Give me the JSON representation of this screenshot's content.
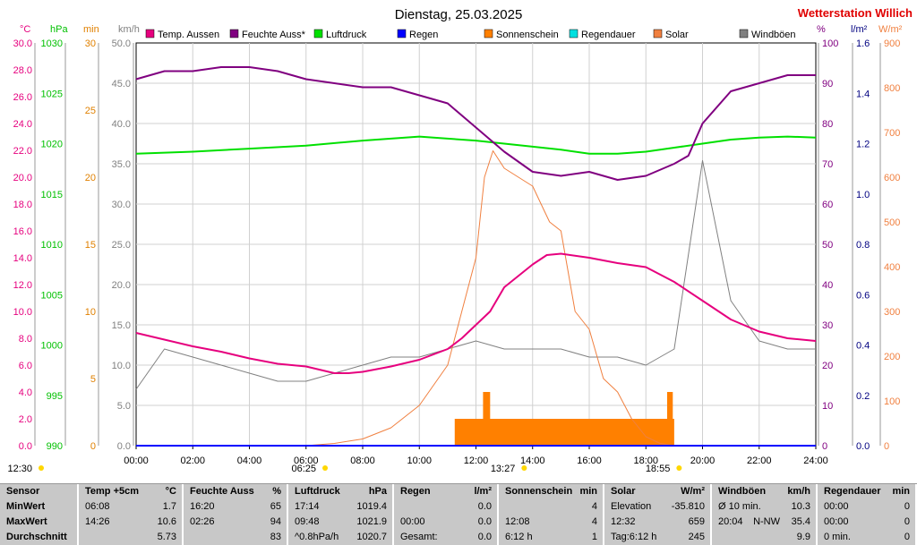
{
  "title": "Dienstag, 25.03.2025",
  "station": "Wetterstation Willich",
  "legend": [
    {
      "label": "Temp. Aussen",
      "color": "#e6007e"
    },
    {
      "label": "Feuchte Auss*",
      "color": "#800080"
    },
    {
      "label": "Luftdruck",
      "color": "#00e000"
    },
    {
      "label": "Regen",
      "color": "#0000ff"
    },
    {
      "label": "Sonnenschein",
      "color": "#ff8000"
    },
    {
      "label": "Regendauer",
      "color": "#00e0e0"
    },
    {
      "label": "Solar",
      "color": "#f08040"
    },
    {
      "label": "Windböen",
      "color": "#808080"
    }
  ],
  "axes": {
    "left": [
      {
        "unit": "°C",
        "color": "#e6007e",
        "ticks": [
          "0.0",
          "2.0",
          "4.0",
          "6.0",
          "8.0",
          "10.0",
          "12.0",
          "14.0",
          "16.0",
          "18.0",
          "20.0",
          "22.0",
          "24.0",
          "26.0",
          "28.0",
          "30.0"
        ]
      },
      {
        "unit": "hPa",
        "color": "#00c000",
        "ticks": [
          "990",
          "995",
          "1000",
          "1005",
          "1010",
          "1015",
          "1020",
          "1025",
          "1030"
        ]
      },
      {
        "unit": "min",
        "color": "#e08000",
        "ticks": [
          "0",
          "5",
          "10",
          "15",
          "20",
          "25",
          "30"
        ]
      },
      {
        "unit": "km/h",
        "color": "#808080",
        "ticks": [
          "0.0",
          "5.0",
          "10.0",
          "15.0",
          "20.0",
          "25.0",
          "30.0",
          "35.0",
          "40.0",
          "45.0",
          "50.0"
        ]
      }
    ],
    "right": [
      {
        "unit": "%",
        "color": "#800080",
        "ticks": [
          "0",
          "10",
          "20",
          "30",
          "40",
          "50",
          "60",
          "70",
          "80",
          "90",
          "100"
        ]
      },
      {
        "unit": "l/m²",
        "color": "#000080",
        "ticks": [
          "0.0",
          "0.2",
          "0.4",
          "0.6",
          "0.8",
          "1.0",
          "1.2",
          "1.4",
          "1.6"
        ]
      },
      {
        "unit": "W/m²",
        "color": "#f08040",
        "ticks": [
          "0",
          "100",
          "200",
          "300",
          "400",
          "500",
          "600",
          "700",
          "800",
          "900"
        ]
      }
    ],
    "x_ticks": [
      "00:00",
      "02:00",
      "04:00",
      "06:00",
      "08:00",
      "10:00",
      "12:00",
      "14:00",
      "16:00",
      "18:00",
      "20:00",
      "22:00",
      "24:00"
    ]
  },
  "markers": [
    {
      "label": "12:30",
      "hour": 0
    },
    {
      "label": "06:25",
      "hour": 6.42
    },
    {
      "label": "13:27",
      "hour": 13.45
    },
    {
      "label": "18:55",
      "hour": 18.92
    }
  ],
  "chart_data": {
    "type": "line",
    "title": "Dienstag, 25.03.2025",
    "x_range_hours": [
      0,
      24
    ],
    "series": [
      {
        "name": "Temp. Aussen",
        "unit": "°C",
        "axis": "°C",
        "x": [
          0,
          1,
          2,
          3,
          4,
          5,
          6,
          7,
          7.5,
          8,
          9,
          10,
          11,
          11.5,
          12,
          12.5,
          13,
          14,
          14.5,
          15,
          16,
          17,
          18,
          19,
          20,
          21,
          22,
          23,
          24
        ],
        "values": [
          8.4,
          7.9,
          7.4,
          7.0,
          6.5,
          6.1,
          5.9,
          5.4,
          5.4,
          5.5,
          5.9,
          6.4,
          7.2,
          8.0,
          9.0,
          10.0,
          11.8,
          13.5,
          14.2,
          14.3,
          14.0,
          13.6,
          13.3,
          12.2,
          10.8,
          9.4,
          8.5,
          8.0,
          7.8
        ]
      },
      {
        "name": "Feuchte Auss*",
        "unit": "%",
        "axis": "%",
        "x": [
          0,
          1,
          2,
          3,
          4,
          5,
          6,
          7,
          8,
          9,
          10,
          11,
          12,
          13,
          14,
          15,
          16,
          17,
          18,
          19,
          19.5,
          20,
          21,
          22,
          23,
          24
        ],
        "values": [
          91,
          93,
          93,
          94,
          94,
          93,
          91,
          90,
          89,
          89,
          87,
          85,
          79,
          73,
          68,
          67,
          68,
          66,
          67,
          70,
          72,
          80,
          88,
          90,
          92,
          92
        ]
      },
      {
        "name": "Luftdruck",
        "unit": "hPa",
        "axis": "hPa",
        "x": [
          0,
          2,
          4,
          6,
          8,
          10,
          11,
          12,
          13,
          14,
          15,
          16,
          17,
          18,
          19,
          20,
          21,
          22,
          23,
          24
        ],
        "values": [
          1019.0,
          1019.2,
          1019.5,
          1019.8,
          1020.3,
          1020.7,
          1020.5,
          1020.3,
          1020.0,
          1019.7,
          1019.4,
          1019.0,
          1019.0,
          1019.2,
          1019.6,
          1020.0,
          1020.4,
          1020.6,
          1020.7,
          1020.6
        ]
      },
      {
        "name": "Solar",
        "unit": "W/m²",
        "axis": "W/m²",
        "x": [
          6,
          7,
          8,
          9,
          10,
          11,
          11.5,
          12,
          12.3,
          12.6,
          13,
          13.5,
          14,
          14.3,
          14.6,
          15,
          15.5,
          16,
          16.5,
          17,
          17.5,
          18,
          18.5,
          19
        ],
        "values": [
          0,
          5,
          15,
          40,
          90,
          180,
          300,
          420,
          600,
          659,
          620,
          600,
          580,
          540,
          500,
          480,
          300,
          260,
          150,
          120,
          60,
          20,
          5,
          0
        ]
      },
      {
        "name": "Sonnenschein",
        "unit": "min",
        "axis": "min",
        "x": [
          11.25,
          12.0,
          12.25,
          12.5,
          18.5,
          18.75,
          19.0
        ],
        "values": [
          2,
          2,
          4,
          2,
          2,
          4,
          0
        ]
      },
      {
        "name": "Windböen",
        "unit": "km/h",
        "axis": "km/h",
        "x": [
          0,
          1,
          2,
          3,
          4,
          5,
          6,
          7,
          8,
          9,
          10,
          11,
          12,
          13,
          14,
          15,
          16,
          17,
          18,
          19,
          20,
          21,
          22,
          23,
          24
        ],
        "values": [
          7,
          12,
          11,
          10,
          9,
          8,
          8,
          9,
          10,
          11,
          11,
          12,
          13,
          12,
          12,
          12,
          11,
          11,
          10,
          12,
          35.4,
          18,
          13,
          12,
          12
        ]
      },
      {
        "name": "Regen",
        "unit": "l/m²",
        "axis": "l/m²",
        "x": [
          0,
          24
        ],
        "values": [
          0,
          0
        ]
      }
    ]
  },
  "stats": {
    "cols": [
      {
        "h1": "Sensor",
        "h2": "",
        "rows": [
          [
            "MinWert",
            "",
            ""
          ],
          [
            "MaxWert",
            "",
            ""
          ],
          [
            "Durchschnitt",
            "",
            ""
          ]
        ]
      },
      {
        "h1": "Temp +5cm",
        "h2": "°C",
        "rows": [
          [
            "06:08",
            "",
            "1.7"
          ],
          [
            "14:26",
            "",
            "10.6"
          ],
          [
            "",
            "",
            "5.73"
          ]
        ]
      },
      {
        "h1": "Feuchte Auss",
        "h2": "%",
        "rows": [
          [
            "16:20",
            "",
            "65"
          ],
          [
            "02:26",
            "",
            "94"
          ],
          [
            "",
            "",
            "83"
          ]
        ]
      },
      {
        "h1": "Luftdruck",
        "h2": "hPa",
        "rows": [
          [
            "17:14",
            "",
            "1019.4"
          ],
          [
            "09:48",
            "",
            "1021.9"
          ],
          [
            "^0.8hPa/h",
            "",
            "1020.7"
          ]
        ]
      },
      {
        "h1": "Regen",
        "h2": "l/m²",
        "rows": [
          [
            "",
            "",
            "0.0"
          ],
          [
            "00:00",
            "",
            "0.0"
          ],
          [
            "Gesamt:",
            "",
            "0.0"
          ]
        ]
      },
      {
        "h1": "Sonnenschein",
        "h2": "min",
        "rows": [
          [
            "",
            "",
            "4"
          ],
          [
            "12:08",
            "",
            "4"
          ],
          [
            "6:12 h",
            "",
            "1"
          ]
        ]
      },
      {
        "h1": "Solar",
        "h2": "W/m²",
        "rows": [
          [
            "Elevation",
            "",
            "-35.810"
          ],
          [
            "12:32",
            "",
            "659"
          ],
          [
            "Tag:6:12 h",
            "",
            "245"
          ]
        ]
      },
      {
        "h1": "Windböen",
        "h2": "km/h",
        "rows": [
          [
            "Ø 10 min.",
            "",
            "10.3"
          ],
          [
            "20:04",
            "N-NW",
            "35.4"
          ],
          [
            "",
            "",
            "9.9"
          ]
        ]
      },
      {
        "h1": "Regendauer",
        "h2": "min",
        "rows": [
          [
            "00:00",
            "",
            "0"
          ],
          [
            "00:00",
            "",
            "0"
          ],
          [
            "0 min.",
            "",
            "0"
          ]
        ]
      }
    ]
  }
}
